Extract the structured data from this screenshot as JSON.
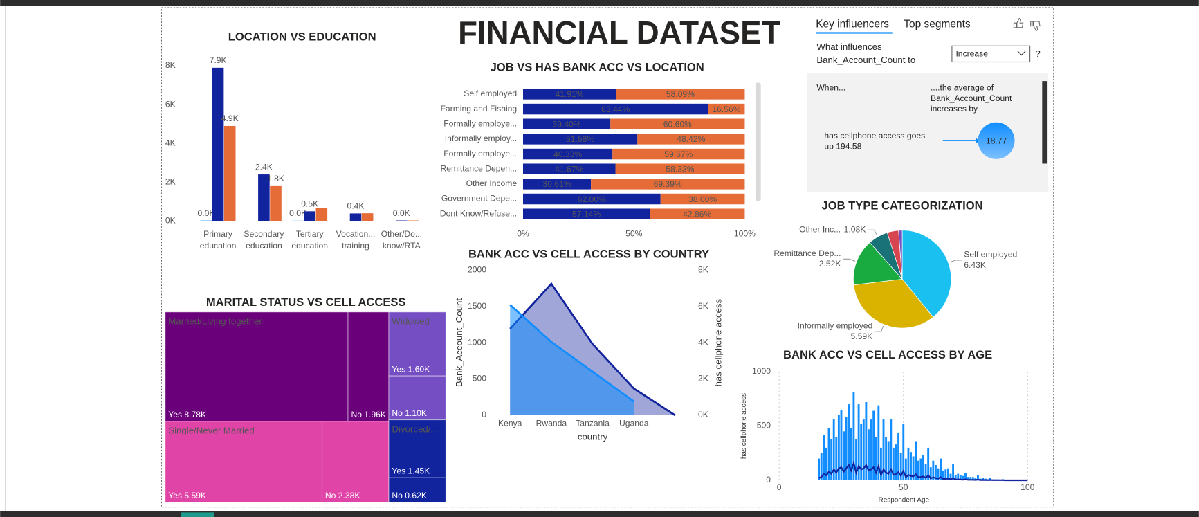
{
  "title": "FINANCIAL DATASET",
  "key_influencers": {
    "tabs": [
      "Key influencers",
      "Top segments"
    ],
    "question": [
      "What influences",
      "Bank_Account_Count to"
    ],
    "dropdown": "Increase",
    "help": "?",
    "when_header": "When...",
    "result_header": [
      "....the average of",
      "Bank_Account_Count",
      "increases by"
    ],
    "factor": [
      "has cellphone access goes",
      "up 194.58"
    ],
    "bubble": "18.77"
  },
  "chart_data": [
    {
      "type": "bar",
      "title": "LOCATION VS EDUCATION",
      "categories": [
        "Primary\neducation",
        "Secondary\neducation",
        "Tertiary\neducation",
        "Vocation...\ntraining",
        "Other/Do...\nknow/RTA"
      ],
      "series": [
        {
          "color": "#3ea7f4",
          "values": [
            30,
            10,
            20,
            5,
            10
          ],
          "value_labels": [
            "0.0K",
            null,
            "0.0K",
            null,
            null
          ]
        },
        {
          "color": "#12239e",
          "values": [
            7900,
            2400,
            500,
            390,
            30
          ],
          "value_labels": [
            "7.9K",
            "2.4K",
            "0.5K",
            "0.4K",
            "0.0K"
          ]
        },
        {
          "color": "#e66c37",
          "values": [
            4900,
            1800,
            670,
            400,
            30
          ],
          "value_labels": [
            "4.9K",
            "1.8K",
            null,
            null,
            null
          ]
        }
      ],
      "ylim": [
        0,
        8000
      ],
      "yticks": [
        {
          "value": 0,
          "label": "0K"
        },
        {
          "value": 2000,
          "label": "2K"
        },
        {
          "value": 4000,
          "label": "4K"
        },
        {
          "value": 6000,
          "label": "6K"
        },
        {
          "value": 8000,
          "label": "8K"
        }
      ]
    },
    {
      "type": "hbar",
      "title": "JOB VS HAS BANK ACC VS LOCATION",
      "categories": [
        "Self employed",
        "Farming and Fishing",
        "Formally employe...",
        "Informally employ...",
        "Formally employe...",
        "Remittance Depen...",
        "Other Income",
        "Government Depe...",
        "Dont Know/Refuse..."
      ],
      "series": [
        {
          "color": "#12239e",
          "values": [
            41.91,
            83.44,
            39.4,
            51.58,
            40.33,
            41.67,
            30.61,
            62.0,
            57.14
          ],
          "value_labels": [
            "41.91%",
            "83.44%",
            "39.40%",
            "51.58%",
            "40.33%",
            "41.67%",
            "30.61%",
            "62.00%",
            "57.14%"
          ]
        },
        {
          "color": "#e66c37",
          "values": [
            58.09,
            16.56,
            60.6,
            48.42,
            59.67,
            58.33,
            69.39,
            38.0,
            42.86
          ],
          "value_labels": [
            "58.09%",
            "16.56%",
            "60.60%",
            "48.42%",
            "59.67%",
            "58.33%",
            "69.39%",
            "38.00%",
            "42.86%"
          ]
        }
      ],
      "xlim": [
        0,
        100
      ],
      "xticks": [
        {
          "value": 0,
          "label": "0%"
        },
        {
          "value": 50,
          "label": "50%"
        },
        {
          "value": 100,
          "label": "100%"
        }
      ]
    },
    {
      "type": "area",
      "title": "BANK ACC VS CELL ACCESS BY COUNTRY",
      "categories": [
        "Kenya",
        "Rwanda",
        "Tanzania",
        "Uganda",
        null
      ],
      "x_label": "country",
      "y_label": "Bank_Account_Count",
      "y2_label": "has cellphone access",
      "series": [
        {
          "color": "#118dff",
          "values": [
            1520,
            1010,
            600,
            190,
            null
          ]
        },
        {
          "color": "#12239e",
          "axis": "y2",
          "values": [
            4760,
            7240,
            3920,
            1470,
            0
          ]
        }
      ],
      "ylim": [
        0,
        2000
      ],
      "yticks": [
        0,
        500,
        1000,
        1500,
        2000
      ],
      "y2lim": [
        0,
        8000
      ],
      "y2ticks": [
        {
          "value": 0,
          "label": "0K"
        },
        {
          "value": 2000,
          "label": "2K"
        },
        {
          "value": 4000,
          "label": "4K"
        },
        {
          "value": 6000,
          "label": "6K"
        },
        {
          "value": 8000,
          "label": "8K"
        }
      ]
    },
    {
      "type": "treemap",
      "title": "MARITAL STATUS VS CELL ACCESS",
      "groups": [
        {
          "name": "Married/Living together",
          "color": "#6b007b",
          "children": [
            {
              "name": "Yes",
              "value": 8780,
              "value_label": "8.78K"
            },
            {
              "name": "No",
              "value": 1960,
              "value_label": "1.96K"
            }
          ]
        },
        {
          "name": "Single/Never Married",
          "color": "#e044a7",
          "children": [
            {
              "name": "Yes",
              "value": 5590,
              "value_label": "5.59K"
            },
            {
              "name": "No",
              "value": 2380,
              "value_label": "2.38K"
            }
          ]
        },
        {
          "name": "Widowed",
          "color": "#744ec2",
          "children": [
            {
              "name": "Yes",
              "value": 1600,
              "value_label": "1.60K"
            },
            {
              "name": "No",
              "value": 1100,
              "value_label": "1.10K"
            }
          ]
        },
        {
          "name": "Divorced/...",
          "color": "#12239e",
          "children": [
            {
              "name": "Yes",
              "value": 1450,
              "value_label": "1.45K"
            },
            {
              "name": "No",
              "value": 620,
              "value_label": "0.62K"
            }
          ]
        }
      ]
    },
    {
      "type": "pie",
      "title": "JOB TYPE CATEGORIZATION",
      "categories": [
        "Self employed",
        "Informally employed",
        "Remittance Dep...",
        "Other Inc...",
        null,
        null
      ],
      "values": [
        6430,
        5590,
        2520,
        1080,
        620,
        200
      ],
      "value_labels": [
        "6.43K",
        "5.59K",
        "2.52K",
        "1.08K",
        null,
        null
      ],
      "colors": [
        "#1ac1f0",
        "#d9b300",
        "#1aab40",
        "#197278",
        "#d64550",
        "#744ec2"
      ]
    },
    {
      "type": "combo",
      "title": "BANK ACC VS CELL ACCESS BY AGE",
      "x_label": "Respondent Age",
      "y_label": "has cellphone access",
      "x": [
        16,
        17,
        18,
        19,
        20,
        21,
        22,
        23,
        24,
        25,
        26,
        27,
        28,
        29,
        30,
        31,
        32,
        33,
        34,
        35,
        36,
        37,
        38,
        39,
        40,
        41,
        42,
        43,
        44,
        45,
        46,
        47,
        48,
        49,
        50,
        51,
        52,
        53,
        54,
        55,
        56,
        57,
        58,
        59,
        60,
        61,
        62,
        63,
        64,
        65,
        66,
        67,
        68,
        69,
        70,
        71,
        72,
        73,
        74,
        75,
        76,
        77,
        78,
        79,
        80,
        81,
        82,
        83,
        84,
        85,
        86,
        87,
        88,
        89,
        90,
        91,
        92,
        93,
        94,
        95,
        96,
        97,
        98,
        99,
        100
      ],
      "series": [
        {
          "kind": "bar",
          "color": "#118dff",
          "values": [
            200,
            250,
            420,
            300,
            480,
            380,
            560,
            400,
            600,
            650,
            450,
            580,
            700,
            480,
            810,
            380,
            700,
            520,
            560,
            720,
            470,
            560,
            640,
            400,
            690,
            300,
            560,
            400,
            360,
            560,
            300,
            330,
            440,
            250,
            520,
            200,
            300,
            260,
            220,
            360,
            180,
            200,
            230,
            150,
            300,
            120,
            180,
            140,
            110,
            200,
            90,
            100,
            110,
            60,
            150,
            50,
            60,
            50,
            40,
            70,
            30,
            30,
            30,
            20,
            50,
            15,
            20,
            15,
            10,
            20,
            8,
            8,
            8,
            5,
            10,
            4,
            3,
            3,
            2,
            3,
            2,
            1,
            1,
            1,
            2
          ]
        },
        {
          "kind": "line",
          "color": "#12239e",
          "values": [
            20,
            30,
            60,
            45,
            80,
            60,
            100,
            70,
            110,
            120,
            80,
            110,
            140,
            90,
            160,
            70,
            130,
            100,
            110,
            140,
            90,
            100,
            120,
            70,
            130,
            50,
            100,
            70,
            60,
            100,
            50,
            55,
            75,
            40,
            85,
            30,
            50,
            40,
            35,
            55,
            28,
            30,
            35,
            22,
            45,
            18,
            26,
            20,
            16,
            28,
            12,
            14,
            15,
            8,
            20,
            7,
            8,
            7,
            5,
            9,
            4,
            4,
            4,
            3,
            6,
            2,
            3,
            2,
            1,
            3,
            1,
            1,
            1,
            1,
            1,
            0,
            0,
            0,
            0,
            0,
            0,
            0,
            0,
            0,
            0
          ]
        }
      ],
      "xlim": [
        0,
        100
      ],
      "xticks": [
        0,
        50,
        100
      ],
      "xgrid": true,
      "ylim": [
        0,
        1000
      ],
      "yticks": [
        0,
        500,
        1000
      ]
    }
  ]
}
